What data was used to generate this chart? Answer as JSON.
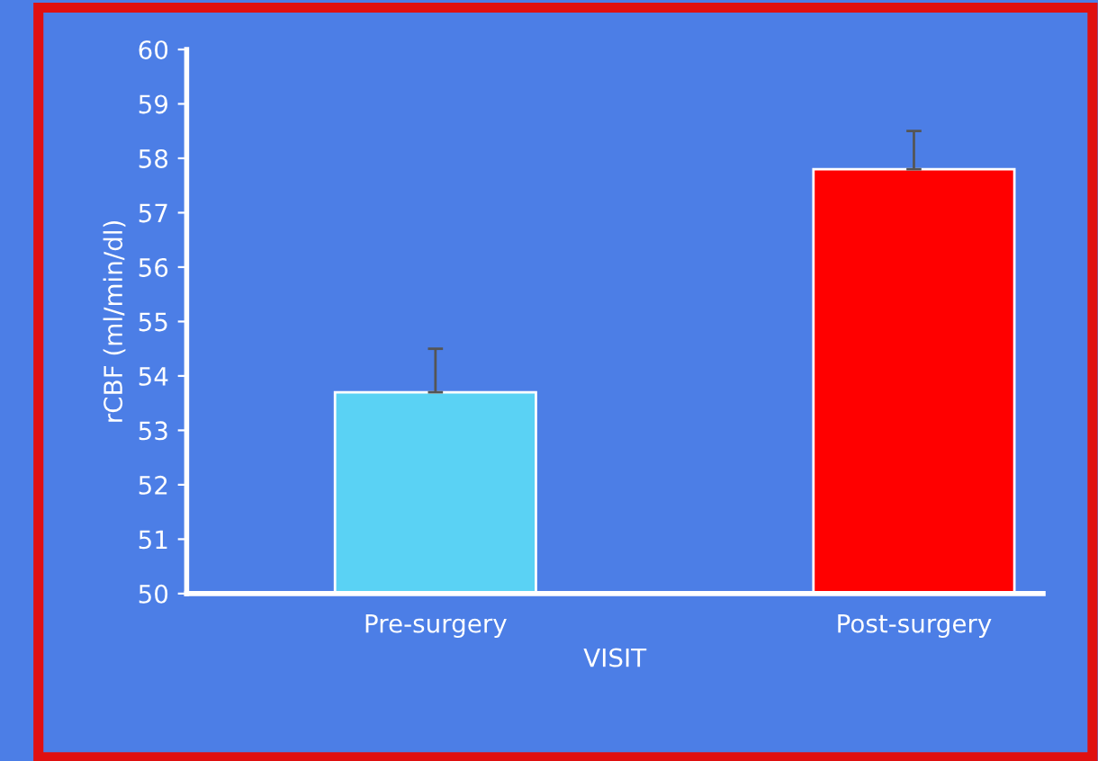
{
  "chart_data": {
    "type": "bar",
    "xlabel": "VISIT",
    "ylabel": "rCBF (ml/min/dl)",
    "categories": [
      "Pre-surgery",
      "Post-surgery"
    ],
    "values": [
      53.7,
      57.8
    ],
    "colors": [
      "#5ad2f4",
      "#ff0000"
    ],
    "errors": [
      [
        53.7,
        54.5
      ],
      [
        57.8,
        58.5
      ]
    ],
    "ylim": [
      50,
      60
    ],
    "yticks": [
      50,
      51,
      52,
      53,
      54,
      55,
      56,
      57,
      58,
      59,
      60
    ],
    "grid": false,
    "legend": false
  }
}
